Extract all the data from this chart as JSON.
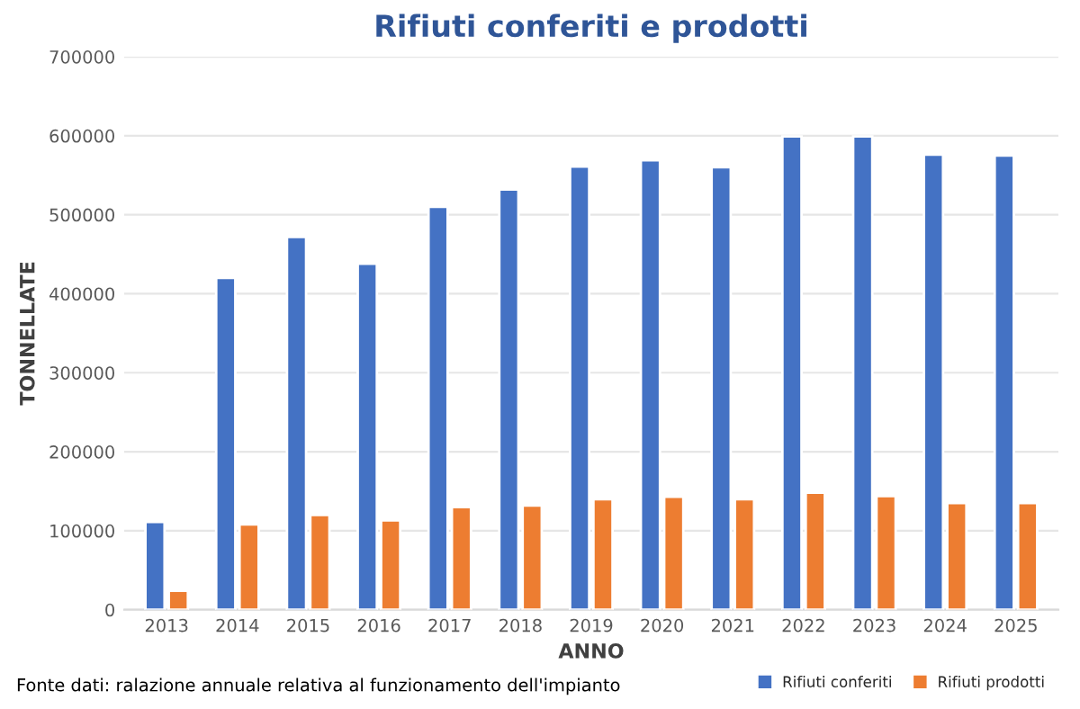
{
  "chart_data": {
    "type": "bar",
    "title": "Rifiuti conferiti e prodotti",
    "xlabel": "ANNO",
    "ylabel": "TONNELLATE",
    "categories": [
      "2013",
      "2014",
      "2015",
      "2016",
      "2017",
      "2018",
      "2019",
      "2020",
      "2021",
      "2022",
      "2023",
      "2024",
      "2025"
    ],
    "series": [
      {
        "name": "Rifiuti conferiti",
        "color": "#4472c4",
        "values": [
          111000,
          420000,
          472000,
          438000,
          510000,
          532000,
          561000,
          569000,
          560000,
          599000,
          599000,
          576000,
          575000
        ]
      },
      {
        "name": "Rifiuti prodotti",
        "color": "#ed7d31",
        "values": [
          24000,
          108000,
          120000,
          113000,
          130000,
          132000,
          140000,
          143000,
          140000,
          148000,
          144000,
          135000,
          135000
        ]
      }
    ],
    "ylim": [
      0,
      700000
    ],
    "yticks": [
      0,
      100000,
      200000,
      300000,
      400000,
      500000,
      600000,
      700000
    ],
    "grid": "y",
    "legend": "bottom right",
    "annotations": [
      "Fonte dati: ralazione annuale relativa al funzionamento dell'impianto"
    ]
  }
}
